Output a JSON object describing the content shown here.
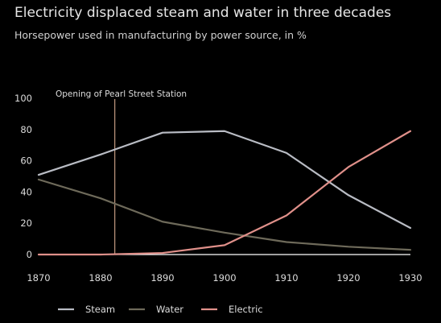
{
  "chart_data": {
    "type": "line",
    "title": "Electricity displaced steam and water in three decades",
    "subtitle": "Horsepower used in manufacturing by power source, in %",
    "x": [
      1870,
      1880,
      1890,
      1900,
      1910,
      1920,
      1930
    ],
    "xticks": [
      "1870",
      "1880",
      "1890",
      "1900",
      "1910",
      "1920",
      "1930"
    ],
    "yticks": [
      "0",
      "20",
      "40",
      "60",
      "80",
      "100"
    ],
    "ylim": [
      0,
      100
    ],
    "xlim": [
      1870,
      1930
    ],
    "grid": false,
    "legend": "bottom",
    "series": [
      {
        "name": "Steam",
        "color": "#b9bcc4",
        "values": [
          51,
          64,
          78,
          79,
          65,
          38,
          17
        ]
      },
      {
        "name": "Water",
        "color": "#6e6a5a",
        "values": [
          48,
          36,
          21,
          14,
          8,
          5,
          3
        ]
      },
      {
        "name": "Electric",
        "color": "#e0908a",
        "values": [
          0,
          0,
          1,
          6,
          25,
          56,
          79
        ]
      }
    ],
    "annotation": {
      "label": "Opening of Pearl Street Station",
      "x": 1882.3,
      "color": "#e8b89a"
    }
  }
}
